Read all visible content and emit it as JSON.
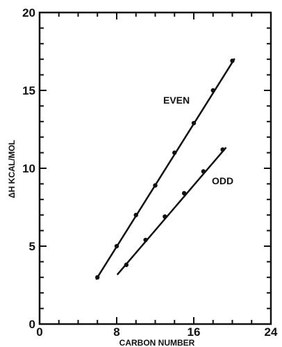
{
  "chart_data": {
    "type": "line",
    "xlabel": "CARBON NUMBER",
    "ylabel": "ΔH KCAL/MOL",
    "xlim": [
      0,
      24
    ],
    "ylim": [
      0,
      20
    ],
    "x_ticks": [
      0,
      8,
      16,
      24
    ],
    "y_ticks": [
      0,
      5,
      10,
      15,
      20
    ],
    "x_tick_labels": [
      "0",
      "8",
      "16",
      "24"
    ],
    "y_tick_labels": [
      "0",
      "5",
      "10",
      "15",
      "20"
    ],
    "grid": false,
    "series": [
      {
        "name": "EVEN",
        "points": [
          [
            6,
            3.0
          ],
          [
            8,
            5.0
          ],
          [
            10,
            7.0
          ],
          [
            12,
            8.9
          ],
          [
            14,
            11.0
          ],
          [
            16,
            12.9
          ],
          [
            18,
            15.0
          ],
          [
            20,
            16.9
          ]
        ],
        "fit": [
          [
            5.9,
            2.9
          ],
          [
            20.2,
            17.0
          ]
        ]
      },
      {
        "name": "ODD",
        "points": [
          [
            9,
            3.8
          ],
          [
            11,
            5.4
          ],
          [
            13,
            6.9
          ],
          [
            15,
            8.4
          ],
          [
            17,
            9.8
          ],
          [
            19,
            11.2
          ]
        ],
        "fit": [
          [
            8.1,
            3.2
          ],
          [
            19.3,
            11.3
          ]
        ]
      }
    ]
  }
}
